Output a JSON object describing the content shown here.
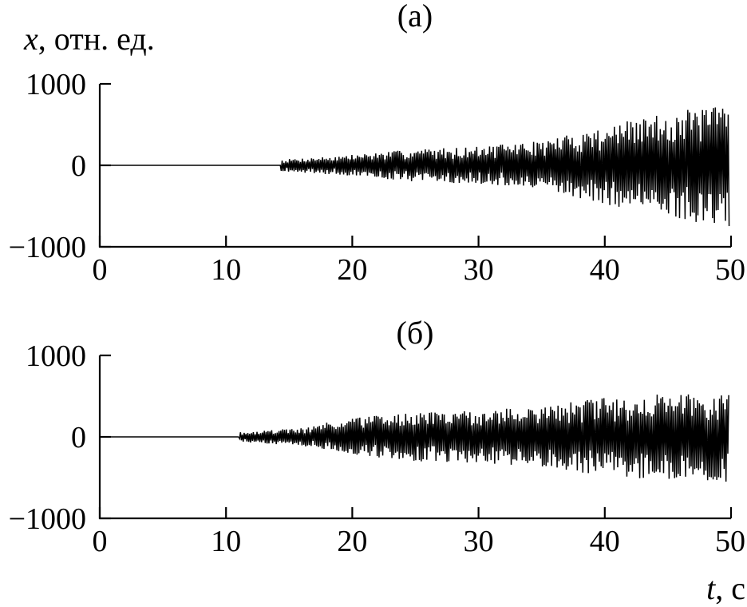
{
  "chart_data": [
    {
      "type": "line",
      "title": "(a)",
      "ylabel": {
        "symbol": "x",
        "rest": ", отн. ед."
      },
      "xlabel": "",
      "xlim": [
        0,
        50
      ],
      "ylim": [
        -1000,
        1000
      ],
      "xticks": [
        0,
        10,
        20,
        30,
        40,
        50
      ],
      "yticks": [
        -1000,
        0,
        1000
      ],
      "xtick_labels": [
        "0",
        "10",
        "20",
        "30",
        "40",
        "50"
      ],
      "ytick_labels": [
        "−1000",
        "0",
        "1000"
      ],
      "grid": false,
      "series": [
        {
          "style": "dense oscillation",
          "onset_t": 14.3,
          "envelope": [
            {
              "t": 0,
              "amp": 0
            },
            {
              "t": 14.3,
              "amp": 0
            },
            {
              "t": 14.3,
              "amp": 70
            },
            {
              "t": 20,
              "amp": 130
            },
            {
              "t": 25,
              "amp": 200
            },
            {
              "t": 30,
              "amp": 230
            },
            {
              "t": 35,
              "amp": 300
            },
            {
              "t": 40,
              "amp": 480
            },
            {
              "t": 45,
              "amp": 650
            },
            {
              "t": 50,
              "amp": 750
            }
          ]
        }
      ]
    },
    {
      "type": "line",
      "title": "(б)",
      "xlabel": {
        "symbol": "t",
        "rest": ", с"
      },
      "ylabel": "",
      "xlim": [
        0,
        50
      ],
      "ylim": [
        -1000,
        1000
      ],
      "xticks": [
        0,
        10,
        20,
        30,
        40,
        50
      ],
      "yticks": [
        -1000,
        0,
        1000
      ],
      "xtick_labels": [
        "0",
        "10",
        "20",
        "30",
        "40",
        "50"
      ],
      "ytick_labels": [
        "−1000",
        "0",
        "1000"
      ],
      "grid": false,
      "series": [
        {
          "style": "dense oscillation",
          "onset_t": 11.0,
          "envelope": [
            {
              "t": 0,
              "amp": 0
            },
            {
              "t": 11.0,
              "amp": 0
            },
            {
              "t": 11.0,
              "amp": 60
            },
            {
              "t": 16,
              "amp": 110
            },
            {
              "t": 20,
              "amp": 240
            },
            {
              "t": 25,
              "amp": 300
            },
            {
              "t": 30,
              "amp": 320
            },
            {
              "t": 35,
              "amp": 380
            },
            {
              "t": 40,
              "amp": 480
            },
            {
              "t": 45,
              "amp": 540
            },
            {
              "t": 50,
              "amp": 560
            }
          ]
        }
      ]
    }
  ]
}
